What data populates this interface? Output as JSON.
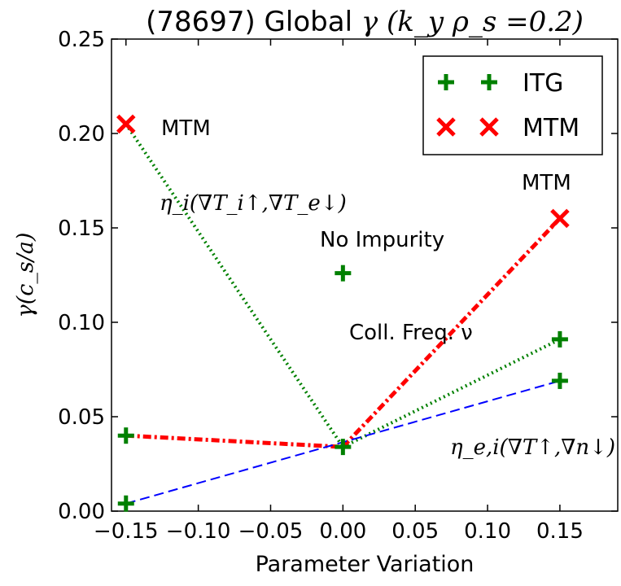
{
  "chart_data": {
    "type": "scatter",
    "title": "(78697) Global γ (k_y ρ_s = 0.2)",
    "title_parts": {
      "main": "(78697) Global ",
      "math": "γ (k_y ρ_s =0.2)"
    },
    "xlabel": "Parameter Variation",
    "ylabel": "γ(c_s/a)",
    "xlim": [
      -0.16,
      0.19
    ],
    "ylim": [
      0.0,
      0.25
    ],
    "x_ticks": [
      -0.15,
      -0.1,
      -0.05,
      0.0,
      0.05,
      0.1,
      0.15
    ],
    "x_tick_labels": [
      "−0.15",
      "−0.10",
      "−0.05",
      "0.00",
      "0.05",
      "0.10",
      "0.15"
    ],
    "y_ticks": [
      0.0,
      0.05,
      0.1,
      0.15,
      0.2,
      0.25
    ],
    "y_tick_labels": [
      "0.00",
      "0.05",
      "0.10",
      "0.15",
      "0.20",
      "0.25"
    ],
    "grid": false,
    "legend_position": "top-right",
    "series": [
      {
        "name": "ITG",
        "marker": "plus",
        "color": "#008000",
        "points": [
          {
            "x": -0.15,
            "y": 0.04
          },
          {
            "x": -0.15,
            "y": 0.004
          },
          {
            "x": 0.0,
            "y": 0.034
          },
          {
            "x": 0.0,
            "y": 0.126
          },
          {
            "x": 0.15,
            "y": 0.091
          },
          {
            "x": 0.15,
            "y": 0.069
          }
        ]
      },
      {
        "name": "MTM",
        "marker": "x",
        "color": "#ff0000",
        "points": [
          {
            "x": -0.15,
            "y": 0.205
          },
          {
            "x": 0.15,
            "y": 0.155
          }
        ]
      }
    ],
    "lines": [
      {
        "id": "eta-i-left",
        "style": "dotted",
        "color": "#008000",
        "points": [
          [
            -0.15,
            0.205
          ],
          [
            0.0,
            0.034
          ]
        ]
      },
      {
        "id": "eta-i-right",
        "style": "dotted",
        "color": "#008000",
        "points": [
          [
            0.0,
            0.034
          ],
          [
            0.15,
            0.091
          ]
        ]
      },
      {
        "id": "coll-left",
        "style": "dashdot",
        "color": "#ff0000",
        "points": [
          [
            -0.15,
            0.04
          ],
          [
            0.0,
            0.034
          ]
        ]
      },
      {
        "id": "coll-right",
        "style": "dashdot",
        "color": "#ff0000",
        "points": [
          [
            0.0,
            0.034
          ],
          [
            0.15,
            0.155
          ]
        ]
      },
      {
        "id": "eta-ei",
        "style": "dashed",
        "color": "#0000ff",
        "points": [
          [
            -0.15,
            0.004
          ],
          [
            0.15,
            0.069
          ]
        ]
      }
    ],
    "annotations": [
      {
        "id": "mtm-left",
        "text": "MTM"
      },
      {
        "id": "mtm-right",
        "text": "MTM"
      },
      {
        "id": "eta-i",
        "text": "η_i(∇T_i↑,∇T_e↓)"
      },
      {
        "id": "no-impurity",
        "text": "No Impurity"
      },
      {
        "id": "coll",
        "text": "Coll. Freq. ν"
      },
      {
        "id": "eta-ei",
        "text": "η_e,i(∇T↑,∇n↓)"
      }
    ],
    "legend": [
      {
        "label": "ITG",
        "marker": "plus",
        "color": "#008000"
      },
      {
        "label": "MTM",
        "marker": "x",
        "color": "#ff0000"
      }
    ]
  }
}
